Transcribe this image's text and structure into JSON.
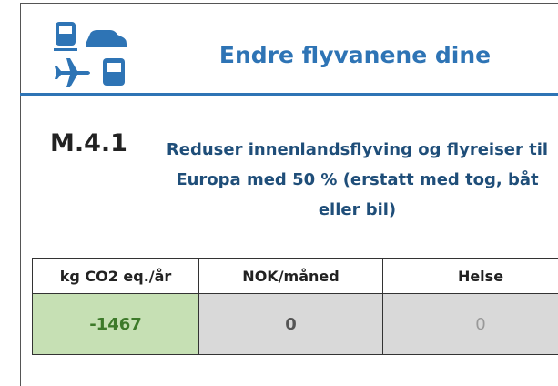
{
  "header": {
    "title": "Endre flyvanene dine"
  },
  "measure": {
    "code": "M.4.1",
    "description": "Reduser innenlandsflyving og flyreiser til Europa med 50 % (erstatt med tog, båt eller bil)"
  },
  "table": {
    "columns": [
      "kg CO2 eq./år",
      "NOK/måned",
      "Helse"
    ],
    "rows": [
      [
        -1467,
        0,
        0
      ]
    ]
  }
}
